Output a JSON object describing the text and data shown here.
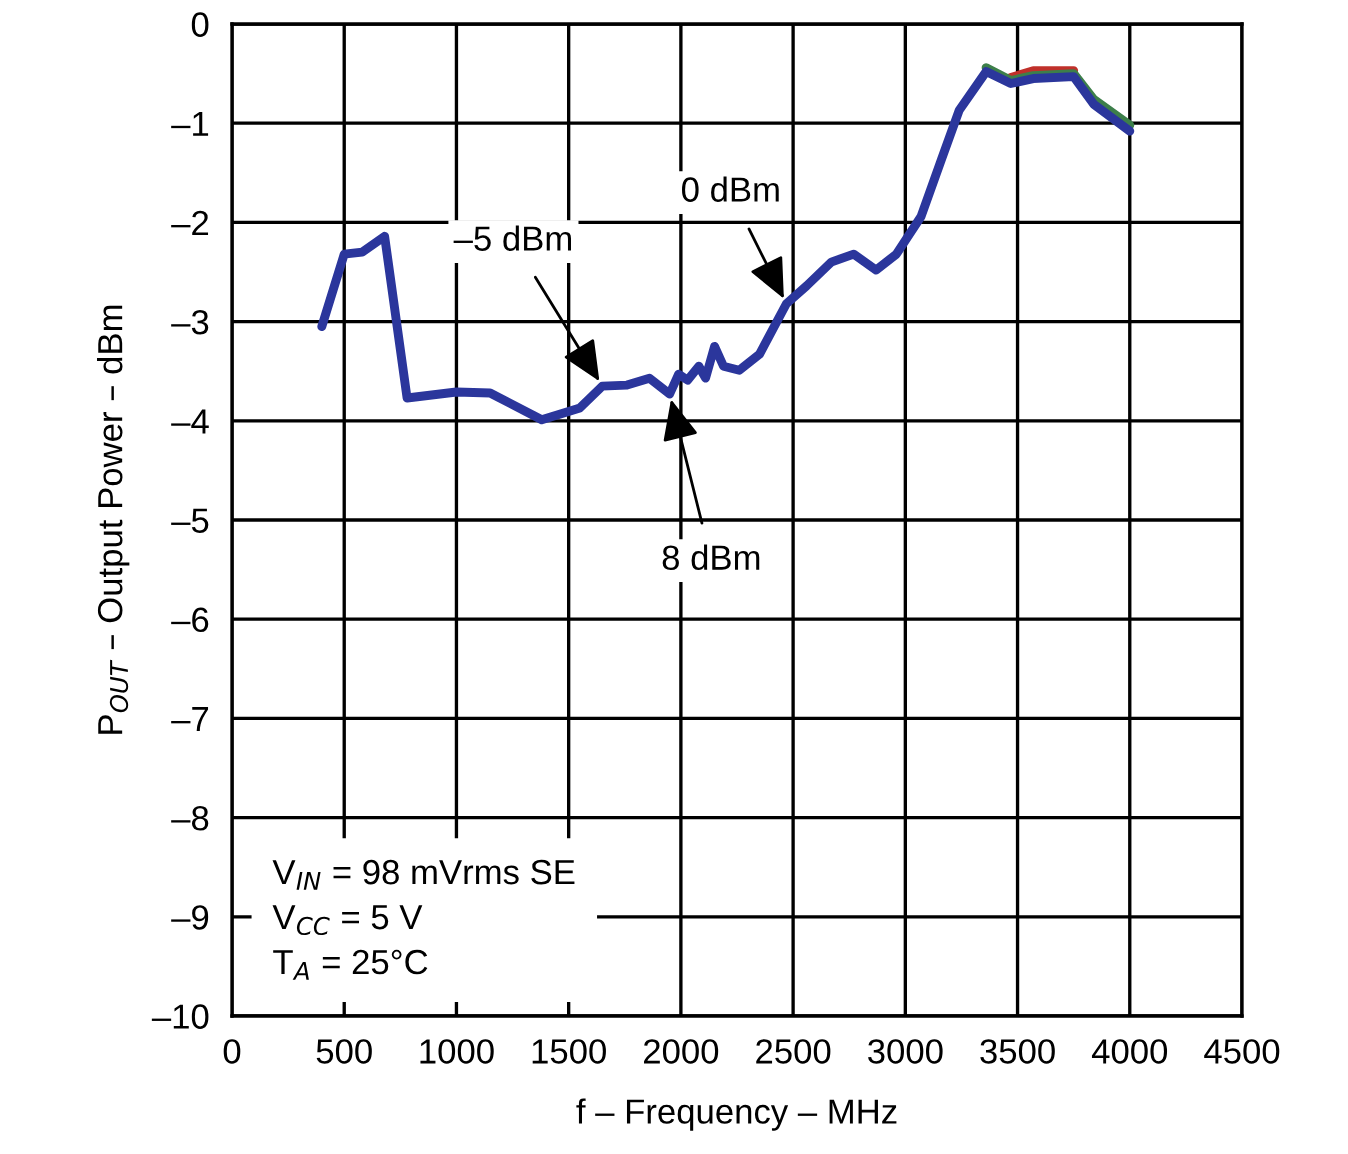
{
  "chart_data": {
    "type": "line",
    "xlabel": "f – Frequency – MHz",
    "ylabel": "P$_{OUT}$ – Output Power – dBm",
    "x": [
      400,
      500,
      580,
      680,
      780,
      1000,
      1150,
      1380,
      1550,
      1650,
      1760,
      1860,
      1950,
      1990,
      2030,
      2080,
      2110,
      2150,
      2190,
      2260,
      2350,
      2470,
      2560,
      2670,
      2770,
      2870,
      2960,
      3070,
      3160,
      3240,
      3360,
      3470,
      3570,
      3750,
      3840,
      4000
    ],
    "series": [
      {
        "color": "#c0302a",
        "values": [
          null,
          null,
          null,
          null,
          null,
          null,
          null,
          null,
          null,
          null,
          null,
          null,
          null,
          null,
          null,
          null,
          null,
          null,
          null,
          null,
          null,
          null,
          null,
          null,
          null,
          null,
          null,
          null,
          null,
          null,
          null,
          -0.54,
          -0.47,
          -0.47,
          null,
          null
        ]
      },
      {
        "color": "#3d7f4a",
        "values": [
          null,
          null,
          null,
          null,
          null,
          null,
          null,
          null,
          null,
          null,
          null,
          null,
          null,
          null,
          null,
          null,
          null,
          null,
          null,
          null,
          null,
          null,
          null,
          null,
          null,
          null,
          null,
          null,
          null,
          null,
          -0.44,
          -0.57,
          -0.52,
          -0.5,
          -0.76,
          -1.02
        ]
      },
      {
        "color": "#2b369c",
        "values": [
          -3.05,
          -2.32,
          -2.3,
          -2.14,
          -3.77,
          -3.71,
          -3.72,
          -3.99,
          -3.87,
          -3.65,
          -3.64,
          -3.57,
          -3.73,
          -3.53,
          -3.59,
          -3.45,
          -3.57,
          -3.25,
          -3.45,
          -3.49,
          -3.33,
          -2.82,
          -2.64,
          -2.4,
          -2.32,
          -2.48,
          -2.32,
          -1.94,
          -1.37,
          -0.87,
          -0.48,
          -0.6,
          -0.55,
          -0.53,
          -0.81,
          -1.08
        ]
      }
    ],
    "xlim": [
      0,
      4500
    ],
    "xticks": [
      0,
      500,
      1000,
      1500,
      2000,
      2500,
      3000,
      3500,
      4000,
      4500
    ],
    "ylim": [
      -10,
      0
    ],
    "yticks": [
      0,
      {
        "value": -1,
        "label": "–1"
      },
      {
        "value": -2,
        "label": "–2"
      },
      {
        "value": -3,
        "label": "–3"
      },
      {
        "value": -4,
        "label": "–4"
      },
      {
        "value": -5,
        "label": "–5"
      },
      {
        "value": -6,
        "label": "–6"
      },
      {
        "value": -7,
        "label": "–7"
      },
      {
        "value": -8,
        "label": "–8"
      },
      {
        "value": -9,
        "label": "–9"
      },
      {
        "value": -10,
        "label": "–10"
      }
    ],
    "grid": true,
    "annotations": [
      {
        "text": "–5 dBm",
        "x": 1650,
        "y": -3.65
      },
      {
        "text": "0 dBm",
        "x": 2470,
        "y": -2.82
      },
      {
        "text": "8 dBm",
        "x": 1950,
        "y": -3.73
      },
      "V$_{IN}$ = 98 mVrms SE",
      "V$_{CC}$ = 5 V",
      "T$_{A}$ = 25°C"
    ]
  }
}
